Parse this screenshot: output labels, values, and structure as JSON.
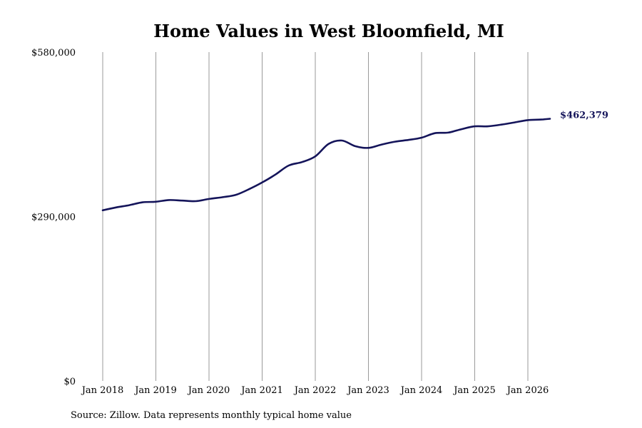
{
  "chart_data": {
    "type": "line",
    "title": "Home Values in West Bloomfield, MI",
    "xlabel": "",
    "ylabel": "",
    "source": "Source: Zillow. Data represents monthly typical home value",
    "end_label": "$462,379",
    "line_color": "#14145a",
    "grid_color": "#9a9a9a",
    "grid": "vertical",
    "ylim": [
      0,
      580000
    ],
    "y_ticks": [
      {
        "value": 0,
        "label": "$0"
      },
      {
        "value": 290000,
        "label": "$290,000"
      },
      {
        "value": 580000,
        "label": "$580,000"
      }
    ],
    "x_ticks": [
      {
        "value": "2018-01",
        "label": "Jan 2018"
      },
      {
        "value": "2019-01",
        "label": "Jan 2019"
      },
      {
        "value": "2020-01",
        "label": "Jan 2020"
      },
      {
        "value": "2021-01",
        "label": "Jan 2021"
      },
      {
        "value": "2022-01",
        "label": "Jan 2022"
      },
      {
        "value": "2023-01",
        "label": "Jan 2023"
      },
      {
        "value": "2024-01",
        "label": "Jan 2024"
      },
      {
        "value": "2025-01",
        "label": "Jan 2025"
      },
      {
        "value": "2026-01",
        "label": "Jan 2026"
      }
    ],
    "series": [
      {
        "x": [
          "2018-01",
          "2018-04",
          "2018-07",
          "2018-10",
          "2019-01",
          "2019-04",
          "2019-07",
          "2019-10",
          "2020-01",
          "2020-04",
          "2020-07",
          "2020-10",
          "2021-01",
          "2021-04",
          "2021-07",
          "2021-10",
          "2022-01",
          "2022-04",
          "2022-07",
          "2022-10",
          "2023-01",
          "2023-04",
          "2023-07",
          "2023-10",
          "2024-01",
          "2024-04",
          "2024-07",
          "2024-10",
          "2025-01",
          "2025-04",
          "2025-07",
          "2025-10",
          "2026-01",
          "2026-04",
          "2026-06"
        ],
        "values": [
          301000,
          306000,
          310000,
          315000,
          316000,
          319000,
          318000,
          317000,
          321000,
          324000,
          328000,
          338000,
          350000,
          364000,
          380000,
          386000,
          396000,
          418000,
          424000,
          414000,
          411000,
          417000,
          422000,
          425000,
          429000,
          437000,
          438000,
          444000,
          449000,
          449000,
          452000,
          456000,
          460000,
          461000,
          462379
        ]
      }
    ]
  }
}
